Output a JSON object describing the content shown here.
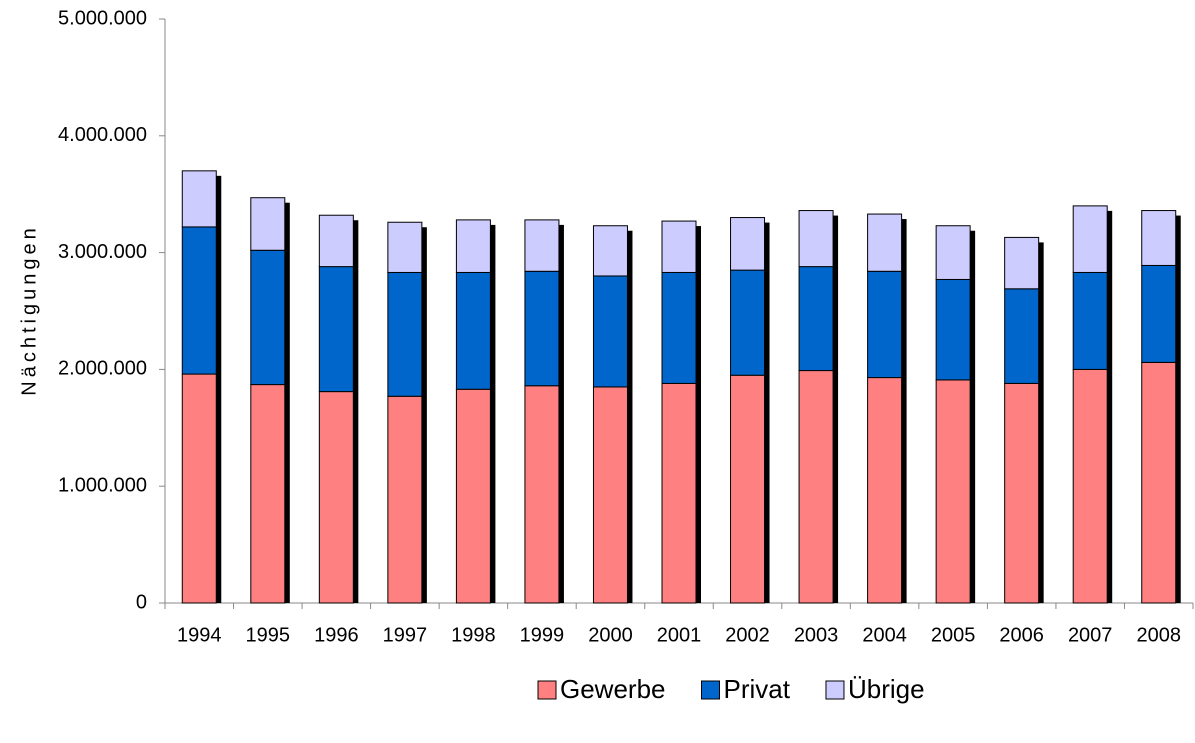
{
  "chart_data": {
    "type": "stacked_bar",
    "y_label": "Nächtigungen",
    "categories": [
      "1994",
      "1995",
      "1996",
      "1997",
      "1998",
      "1999",
      "2000",
      "2001",
      "2002",
      "2003",
      "2004",
      "2005",
      "2006",
      "2007",
      "2008"
    ],
    "series": [
      {
        "name": "Gewerbe",
        "color": "#ff8080",
        "values": [
          1960000,
          1870000,
          1810000,
          1770000,
          1830000,
          1860000,
          1850000,
          1880000,
          1950000,
          1990000,
          1930000,
          1910000,
          1880000,
          2000000,
          2060000
        ]
      },
      {
        "name": "Privat",
        "color": "#0066cc",
        "values": [
          1260000,
          1150000,
          1070000,
          1060000,
          1000000,
          980000,
          950000,
          950000,
          900000,
          890000,
          910000,
          860000,
          810000,
          830000,
          830000
        ]
      },
      {
        "name": "Übrige",
        "color": "#ccccff",
        "values": [
          480000,
          450000,
          440000,
          430000,
          450000,
          440000,
          430000,
          440000,
          450000,
          480000,
          490000,
          460000,
          440000,
          570000,
          470000
        ]
      }
    ],
    "ylim": [
      0,
      5000000
    ],
    "yticks": [
      0,
      {
        "value": 1000000,
        "label": "1.000.000"
      },
      {
        "value": 2000000,
        "label": "2.000.000"
      },
      {
        "value": 3000000,
        "label": "3.000.000"
      },
      {
        "value": 4000000,
        "label": "4.000.000"
      },
      {
        "value": 5000000,
        "label": "5.000.000"
      }
    ],
    "legend": "bottom"
  }
}
